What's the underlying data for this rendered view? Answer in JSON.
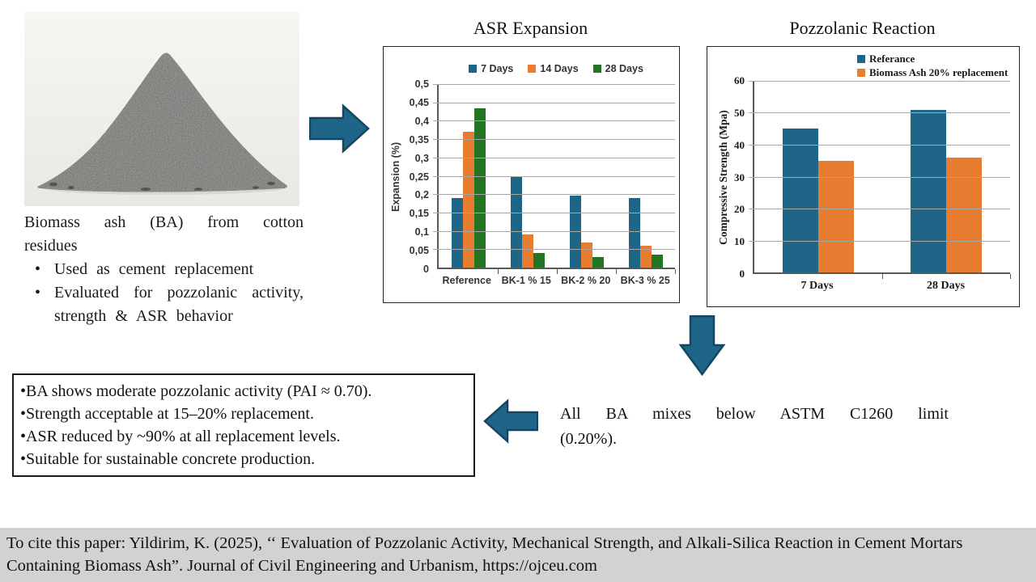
{
  "colors": {
    "arrow_fill": "#1F6587",
    "arrow_stroke": "#15455F",
    "citation_bg": "#D2D2D2",
    "bar_blue": "#1F6587",
    "bar_orange": "#E87D31",
    "bar_green": "#237523"
  },
  "photo": {
    "label": "Biomass ash sample pile"
  },
  "intro": {
    "heading": "Biomass ash (BA) from cotton residues",
    "bullets": [
      "Used as cement replacement",
      "Evaluated for pozzolanic activity, strength & ASR behavior"
    ]
  },
  "chart_data": [
    {
      "type": "bar",
      "title": "ASR Expansion",
      "categories": [
        "Reference",
        "BK-1  % 15",
        "BK-2  % 20",
        "BK-3  % 25"
      ],
      "series": [
        {
          "name": "7 Days",
          "color": "#1F6587",
          "values": [
            0.19,
            0.25,
            0.195,
            0.19
          ]
        },
        {
          "name": "14 Days",
          "color": "#E87D31",
          "values": [
            0.37,
            0.09,
            0.068,
            0.06
          ]
        },
        {
          "name": "28 Days",
          "color": "#237523",
          "values": [
            0.435,
            0.04,
            0.028,
            0.035
          ]
        }
      ],
      "xlabel": "",
      "ylabel": "Expansion (%)",
      "ylim": [
        0,
        0.5
      ],
      "ytick_step": 0.05,
      "ytick_labels": [
        "0",
        "0,05",
        "0,1",
        "0,15",
        "0,2",
        "0,25",
        "0,3",
        "0,35",
        "0,4",
        "0,45",
        "0,5"
      ],
      "grid": true,
      "legend_position": "top-center"
    },
    {
      "type": "bar",
      "title": "Pozzolanic Reaction",
      "categories": [
        "7 Days",
        "28 Days"
      ],
      "series": [
        {
          "name": "Referance",
          "color": "#1F6587",
          "values": [
            45,
            51
          ]
        },
        {
          "name": "Biomass Ash 20% replacement",
          "color": "#E87D31",
          "values": [
            35,
            36
          ]
        }
      ],
      "xlabel": "",
      "ylabel": "Compressive Strength (Mpa)",
      "ylim": [
        0,
        60
      ],
      "ytick_step": 10,
      "ytick_labels": [
        "0",
        "10",
        "20",
        "30",
        "40",
        "50",
        "60"
      ],
      "grid": true,
      "legend_position": "top-right"
    }
  ],
  "astm_note": "All BA mixes below ASTM C1260 limit (0.20%).",
  "findings": {
    "items": [
      "BA shows moderate pozzolanic activity (PAI ≈ 0.70).",
      "Strength acceptable at 15–20% replacement.",
      "ASR reduced by ~90% at all replacement levels.",
      "Suitable for sustainable concrete production."
    ]
  },
  "citation": {
    "text": "To cite this paper: Yildirim, K. (2025), ‘‘ Evaluation of Pozzolanic Activity, Mechanical Strength, and Alkali-Silica Reaction in Cement Mortars Containing Biomass Ash”. Journal of Civil Engineering and Urbanism, https://ojceu.com"
  }
}
